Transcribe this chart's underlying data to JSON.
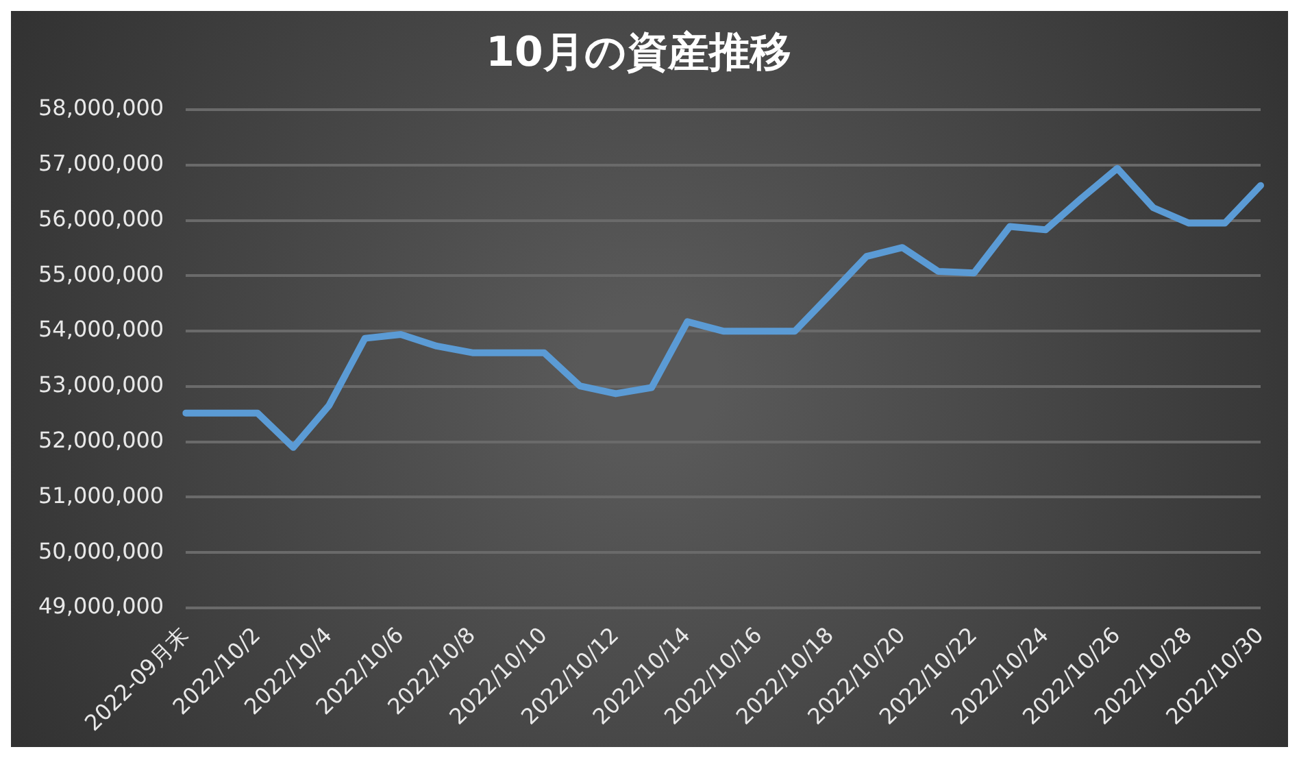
{
  "chart_data": {
    "type": "line",
    "title": "10月の資産推移",
    "categories": [
      "2022-09月末",
      null,
      "2022/10/2",
      null,
      "2022/10/4",
      null,
      "2022/10/6",
      null,
      "2022/10/8",
      null,
      "2022/10/10",
      null,
      "2022/10/12",
      null,
      "2022/10/14",
      null,
      "2022/10/16",
      null,
      "2022/10/18",
      null,
      "2022/10/20",
      null,
      "2022/10/22",
      null,
      "2022/10/24",
      null,
      "2022/10/26",
      null,
      "2022/10/28",
      null,
      "2022/10/30"
    ],
    "series": [
      {
        "color": "#5b9bd5",
        "values": [
          52520000,
          52520000,
          52520000,
          51900000,
          52660000,
          53870000,
          53940000,
          53730000,
          53610000,
          53610000,
          53610000,
          53010000,
          52870000,
          52980000,
          54170000,
          54000000,
          54000000,
          54000000,
          54670000,
          55350000,
          55510000,
          55080000,
          55050000,
          55890000,
          55830000,
          56400000,
          56940000,
          56230000,
          55950000,
          55950000,
          56630000
        ]
      }
    ],
    "ylim": [
      49000000,
      58000000
    ],
    "yticks": [
      {
        "value": 49000000,
        "label": "49,000,000"
      },
      {
        "value": 50000000,
        "label": "50,000,000"
      },
      {
        "value": 51000000,
        "label": "51,000,000"
      },
      {
        "value": 52000000,
        "label": "52,000,000"
      },
      {
        "value": 53000000,
        "label": "53,000,000"
      },
      {
        "value": 54000000,
        "label": "54,000,000"
      },
      {
        "value": 55000000,
        "label": "55,000,000"
      },
      {
        "value": 56000000,
        "label": "56,000,000"
      },
      {
        "value": 57000000,
        "label": "57,000,000"
      },
      {
        "value": 58000000,
        "label": "58,000,000"
      }
    ],
    "grid": "y",
    "legend": false,
    "marker": "none",
    "line_style": "solid"
  }
}
